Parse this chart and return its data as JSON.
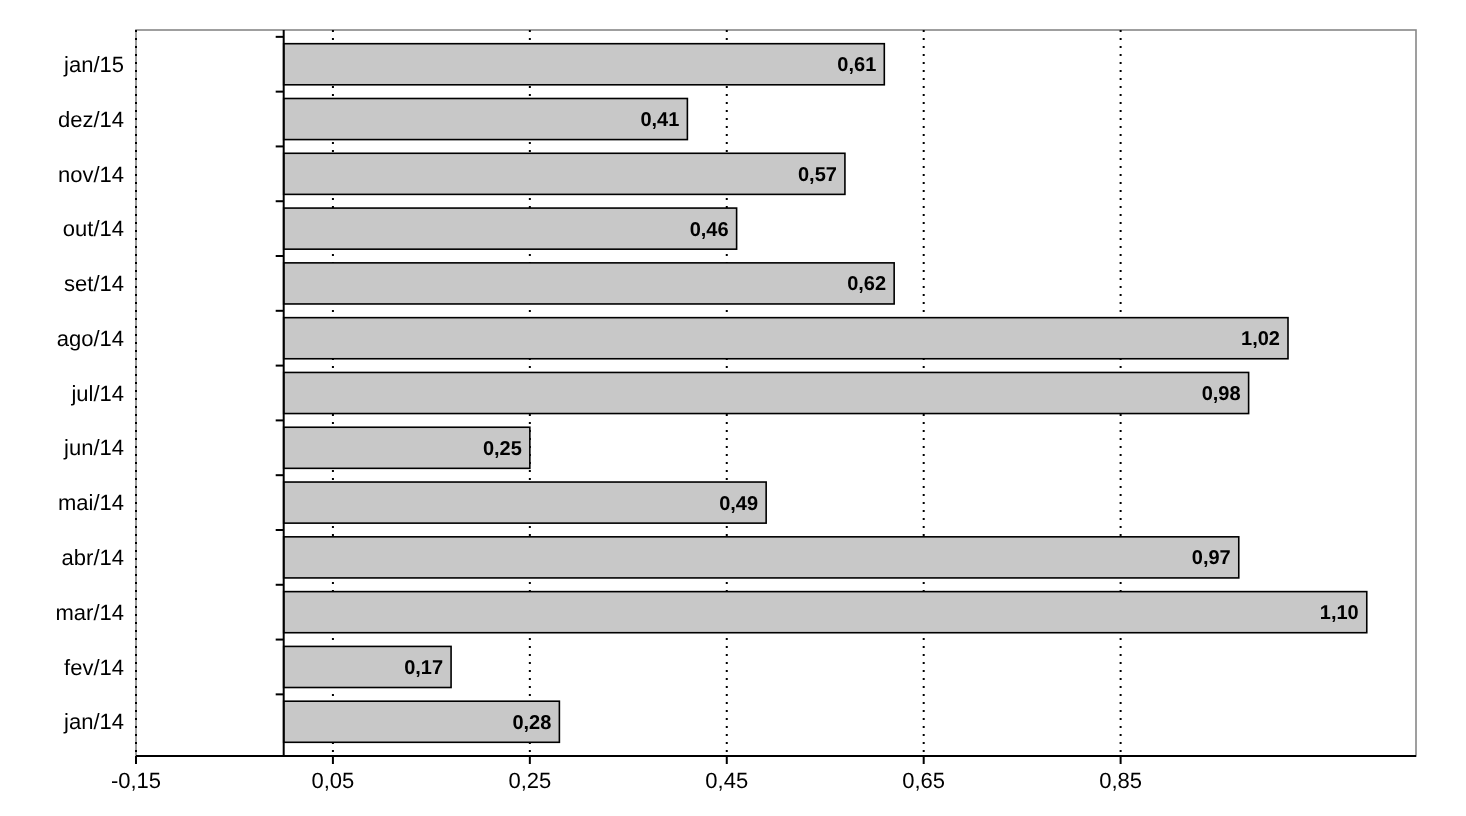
{
  "chart_data": {
    "type": "bar",
    "orientation": "horizontal",
    "categories": [
      "jan/15",
      "dez/14",
      "nov/14",
      "out/14",
      "set/14",
      "ago/14",
      "jul/14",
      "jun/14",
      "mai/14",
      "abr/14",
      "mar/14",
      "fev/14",
      "jan/14"
    ],
    "values": [
      0.61,
      0.41,
      0.57,
      0.46,
      0.62,
      1.02,
      0.98,
      0.25,
      0.49,
      0.97,
      1.1,
      0.17,
      0.28
    ],
    "value_labels": [
      "0,61",
      "0,41",
      "0,57",
      "0,46",
      "0,62",
      "1,02",
      "0,98",
      "0,25",
      "0,49",
      "0,97",
      "1,10",
      "0,17",
      "0,28"
    ],
    "color": "#c8c8c8",
    "xlim": [
      -0.15,
      1.15
    ],
    "xticks": [
      {
        "value": -0.15,
        "label": "-0,15"
      },
      {
        "value": 0.05,
        "label": "0,05"
      },
      {
        "value": 0.25,
        "label": "0,25"
      },
      {
        "value": 0.45,
        "label": "0,45"
      },
      {
        "value": 0.65,
        "label": "0,65"
      },
      {
        "value": 0.85,
        "label": "0,85"
      }
    ],
    "grid": "x"
  }
}
